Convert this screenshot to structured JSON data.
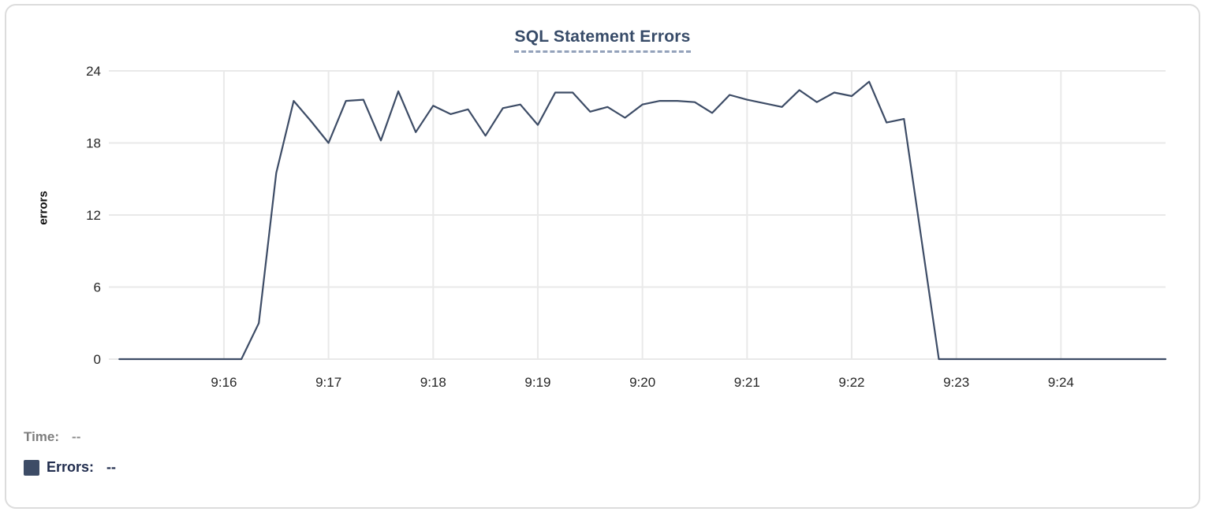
{
  "colors": {
    "line": "#3d4c66",
    "swatch": "#3d4c66",
    "title_text": "#374b68",
    "title_underline": "#93a1ba",
    "grid": "#e9e9e9",
    "axis_text": "#262626",
    "time_readout_text": "#7d7d7d",
    "errors_readout_text": "#212d4e"
  },
  "readout": {
    "time_label": "Time:",
    "time_value": "--",
    "errors_label": "Errors:",
    "errors_value": "--"
  },
  "chart_data": {
    "type": "line",
    "title": "SQL Statement Errors",
    "xlabel": "",
    "ylabel": "errors",
    "ylim": [
      0,
      24
    ],
    "y_ticks": [
      0,
      6,
      12,
      18,
      24
    ],
    "x_ticks": [
      "9:16",
      "9:17",
      "9:18",
      "9:19",
      "9:20",
      "9:21",
      "9:22",
      "9:23",
      "9:24"
    ],
    "x_range": [
      "9:14:54",
      "9:25:00"
    ],
    "grid": true,
    "legend_position": "bottom-left",
    "series": [
      {
        "name": "Errors",
        "color": "#3d4c66",
        "points": [
          [
            "9:15:00",
            0
          ],
          [
            "9:15:10",
            0
          ],
          [
            "9:15:20",
            0
          ],
          [
            "9:15:30",
            0
          ],
          [
            "9:15:40",
            0
          ],
          [
            "9:15:50",
            0
          ],
          [
            "9:16:00",
            0
          ],
          [
            "9:16:10",
            0
          ],
          [
            "9:16:20",
            3
          ],
          [
            "9:16:30",
            15.5
          ],
          [
            "9:16:40",
            21.5
          ],
          [
            "9:16:50",
            19.8
          ],
          [
            "9:17:00",
            18
          ],
          [
            "9:17:10",
            21.5
          ],
          [
            "9:17:20",
            21.6
          ],
          [
            "9:17:30",
            18.2
          ],
          [
            "9:17:40",
            22.3
          ],
          [
            "9:17:50",
            18.9
          ],
          [
            "9:18:00",
            21.1
          ],
          [
            "9:18:10",
            20.4
          ],
          [
            "9:18:20",
            20.8
          ],
          [
            "9:18:30",
            18.6
          ],
          [
            "9:18:40",
            20.9
          ],
          [
            "9:18:50",
            21.2
          ],
          [
            "9:19:00",
            19.5
          ],
          [
            "9:19:10",
            22.2
          ],
          [
            "9:19:20",
            22.2
          ],
          [
            "9:19:30",
            20.6
          ],
          [
            "9:19:40",
            21.0
          ],
          [
            "9:19:50",
            20.1
          ],
          [
            "9:20:00",
            21.2
          ],
          [
            "9:20:10",
            21.5
          ],
          [
            "9:20:20",
            21.5
          ],
          [
            "9:20:30",
            21.4
          ],
          [
            "9:20:40",
            20.5
          ],
          [
            "9:20:50",
            22.0
          ],
          [
            "9:21:00",
            21.6
          ],
          [
            "9:21:10",
            21.3
          ],
          [
            "9:21:20",
            21.0
          ],
          [
            "9:21:30",
            22.4
          ],
          [
            "9:21:40",
            21.4
          ],
          [
            "9:21:50",
            22.2
          ],
          [
            "9:22:00",
            21.9
          ],
          [
            "9:22:10",
            23.1
          ],
          [
            "9:22:20",
            19.7
          ],
          [
            "9:22:30",
            20.0
          ],
          [
            "9:22:40",
            10
          ],
          [
            "9:22:50",
            0
          ],
          [
            "9:23:00",
            0
          ],
          [
            "9:23:10",
            0
          ],
          [
            "9:23:20",
            0
          ],
          [
            "9:23:30",
            0
          ],
          [
            "9:23:40",
            0
          ],
          [
            "9:23:50",
            0
          ],
          [
            "9:24:00",
            0
          ],
          [
            "9:24:10",
            0
          ],
          [
            "9:24:20",
            0
          ],
          [
            "9:24:30",
            0
          ],
          [
            "9:24:40",
            0
          ],
          [
            "9:24:50",
            0
          ],
          [
            "9:25:00",
            0
          ]
        ]
      }
    ]
  }
}
